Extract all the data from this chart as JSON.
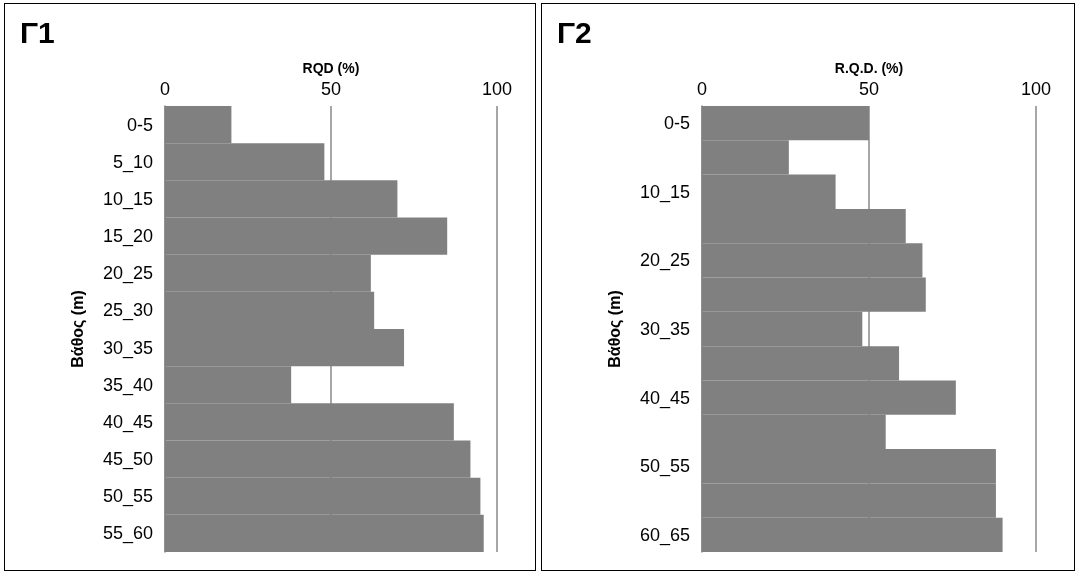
{
  "chart_data": [
    {
      "type": "bar",
      "orientation": "horizontal",
      "title": "Γ1",
      "xlabel": "RQD (%)",
      "ylabel": "Βάθος (m)",
      "categories": [
        "0-5",
        "5_10",
        "10_15",
        "15_20",
        "20_25",
        "25_30",
        "30_35",
        "35_40",
        "40_45",
        "45_50",
        "50_55",
        "55_60"
      ],
      "values": [
        20,
        48,
        70,
        85,
        62,
        63,
        72,
        38,
        87,
        92,
        95,
        96
      ],
      "color": "#808080",
      "xlim": [
        0,
        100
      ],
      "xticks": [
        0,
        50,
        100
      ],
      "grid": "x"
    },
    {
      "type": "bar",
      "orientation": "horizontal",
      "title": "Γ2",
      "xlabel": "R.Q.D. (%)",
      "ylabel": "Βάθος (m)",
      "categories": [
        "0-5",
        null,
        "10_15",
        null,
        "20_25",
        null,
        "30_35",
        null,
        "40_45",
        null,
        "50_55",
        null,
        "60_65"
      ],
      "values": [
        50,
        26,
        40,
        61,
        66,
        67,
        48,
        59,
        76,
        55,
        88,
        88,
        90
      ],
      "color": "#808080",
      "xlim": [
        0,
        100
      ],
      "xticks": [
        0,
        50,
        100
      ],
      "grid": "x"
    }
  ]
}
